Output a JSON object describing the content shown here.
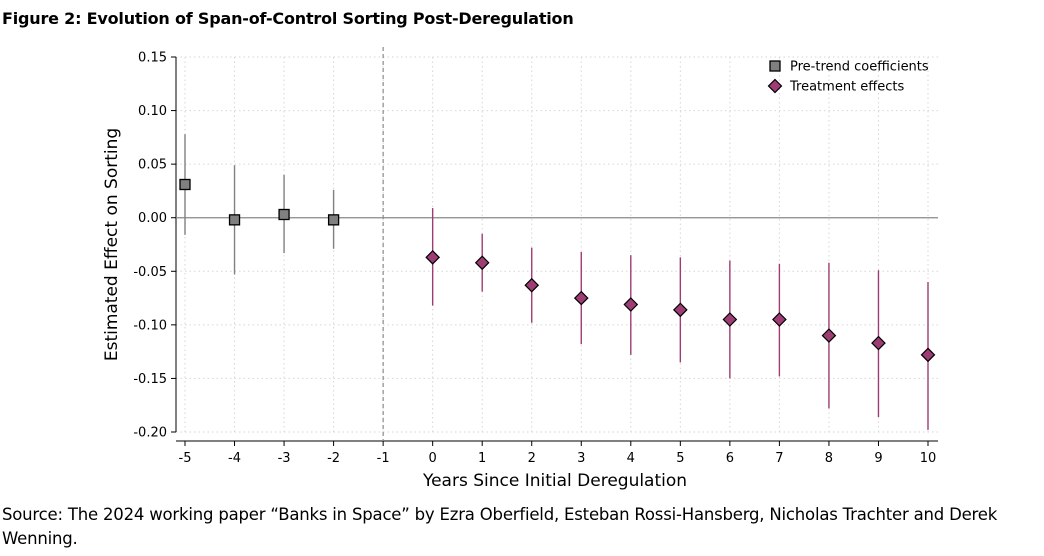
{
  "figure_title": "Figure 2: Evolution of Span-of-Control Sorting Post-Deregulation",
  "source_note": "Source: The 2024 working paper “Banks in Space” by Ezra Oberfield, Esteban Rossi-Hansberg, Nicholas Trachter and Derek Wenning.",
  "chart_data": {
    "type": "scatter",
    "title": "",
    "xlabel": "Years Since Initial Deregulation",
    "ylabel": "Estimated Effect on Sorting",
    "xlim": [
      -5,
      10
    ],
    "ylim": [
      -0.2,
      0.15
    ],
    "x_ticks": [
      -5,
      -4,
      -3,
      -2,
      -1,
      0,
      1,
      2,
      3,
      4,
      5,
      6,
      7,
      8,
      9,
      10
    ],
    "y_ticks": [
      0.15,
      0.1,
      0.05,
      0.0,
      -0.05,
      -0.1,
      -0.15,
      -0.2
    ],
    "y_tick_labels": [
      "0.15",
      "0.10",
      "0.05",
      "0.00",
      "-0.05",
      "-0.10",
      "-0.15",
      "-0.20"
    ],
    "grid": true,
    "reference_lines": {
      "horizontal_y": 0,
      "vertical_dashed_x": -1
    },
    "legend_position": "top-right",
    "series": [
      {
        "name": "Pre-trend coefficients",
        "marker": "square",
        "color": "#808080",
        "x": [
          -5,
          -4,
          -3,
          -2
        ],
        "y": [
          0.031,
          -0.002,
          0.003,
          -0.002
        ],
        "ci_low": [
          -0.016,
          -0.053,
          -0.033,
          -0.029
        ],
        "ci_high": [
          0.078,
          0.049,
          0.04,
          0.026
        ]
      },
      {
        "name": "Treatment effects",
        "marker": "diamond",
        "color": "#9e3d74",
        "x": [
          0,
          1,
          2,
          3,
          4,
          5,
          6,
          7,
          8,
          9,
          10
        ],
        "y": [
          -0.037,
          -0.042,
          -0.063,
          -0.075,
          -0.081,
          -0.086,
          -0.095,
          -0.095,
          -0.11,
          -0.117,
          -0.128
        ],
        "ci_low": [
          -0.082,
          -0.069,
          -0.098,
          -0.118,
          -0.128,
          -0.135,
          -0.15,
          -0.148,
          -0.178,
          -0.186,
          -0.198
        ],
        "ci_high": [
          0.009,
          -0.015,
          -0.028,
          -0.032,
          -0.035,
          -0.037,
          -0.04,
          -0.043,
          -0.042,
          -0.049,
          -0.06
        ]
      }
    ]
  }
}
